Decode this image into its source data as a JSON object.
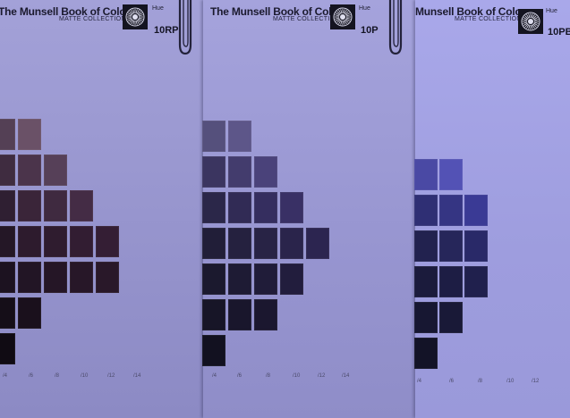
{
  "colors": {
    "bg": "#9292c8",
    "page_rp": "#9795cd",
    "page_p": "#9a98d2",
    "page_pb": "#a1a0e2",
    "ink": "#1b1a2e"
  },
  "pages": [
    {
      "title": "The Munsell Book of Color",
      "subtitle": "MATTE COLLECTION",
      "hue_label": "Hue",
      "hue": "10RP",
      "logo_icon": "munsell-sunburst-logo"
    },
    {
      "title": "The Munsell Book of Color",
      "subtitle": "MATTE COLLECTION",
      "hue_label": "Hue",
      "hue": "10P",
      "logo_icon": "munsell-sunburst-logo"
    },
    {
      "title": "Munsell Book of Color",
      "subtitle": "MATTE COLLECTION",
      "hue_label": "Hue",
      "hue": "10PB",
      "logo_icon": "munsell-sunburst-logo"
    }
  ],
  "chroma_labels": [
    "/4",
    "/6",
    "/8",
    "/10",
    "/12",
    "/14"
  ],
  "chip_grids": [
    {
      "hue": "10RP",
      "rows": [
        [
          "#544055",
          "#6a5167"
        ],
        [
          "#3f2c40",
          "#4b344b",
          "#564058"
        ],
        [
          "#2f1f32",
          "#3a2539",
          "#3f2a40",
          "#442c45"
        ],
        [
          "#241726",
          "#2d1b2d",
          "#2f1c2f",
          "#321d32",
          "#341e34"
        ],
        [
          "#1c1220",
          "#221525",
          "#251626",
          "#271728",
          "#291829"
        ],
        [
          "#150e18",
          "#1a101c"
        ],
        [
          "#100b13"
        ]
      ]
    },
    {
      "hue": "10P",
      "rows": [
        [
          "#55507c",
          "#5d5689"
        ],
        [
          "#3b3560",
          "#433c6d",
          "#4a427a"
        ],
        [
          "#2b2749",
          "#312b55",
          "#352e5f",
          "#393065"
        ],
        [
          "#211e38",
          "#25213f",
          "#282345",
          "#2a244b",
          "#2c2550"
        ],
        [
          "#1b192e",
          "#1e1b34",
          "#201c39",
          "#221d3d"
        ],
        [
          "#171527",
          "#19162c",
          "#1b172f"
        ],
        [
          "#121120"
        ]
      ]
    },
    {
      "hue": "10PB",
      "rows": [
        [
          "#4a49a4",
          "#5352b5"
        ],
        [
          "#2f2f74",
          "#353583",
          "#3a3a95"
        ],
        [
          "#22224f",
          "#26265a",
          "#292968"
        ],
        [
          "#1b1b3c",
          "#1d1d44",
          "#20204d"
        ],
        [
          "#171732",
          "#191937"
        ],
        [
          "#131327"
        ]
      ]
    }
  ]
}
